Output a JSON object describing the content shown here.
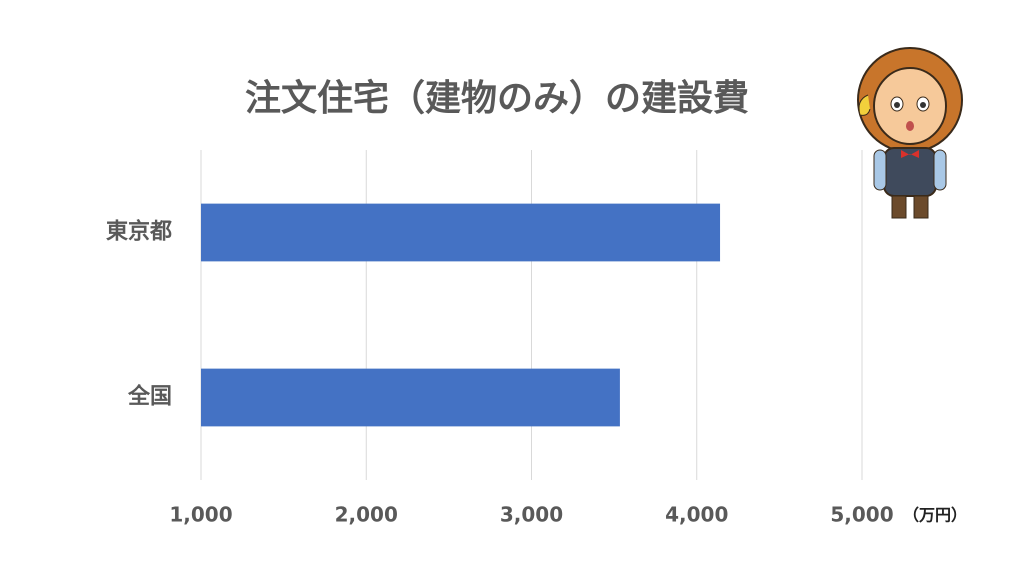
{
  "chart_data": {
    "type": "bar",
    "orientation": "horizontal",
    "title": "注文住宅（建物のみ）の建設費",
    "categories": [
      "東京都",
      "全国"
    ],
    "values": [
      4141,
      3535
    ],
    "color": "#4472c4",
    "xlim": [
      1000,
      5000
    ],
    "xticks": [
      {
        "value": 1000,
        "label": "1,000"
      },
      {
        "value": 2000,
        "label": "2,000"
      },
      {
        "value": 3000,
        "label": "3,000"
      },
      {
        "value": 4000,
        "label": "4,000"
      },
      {
        "value": 5000,
        "label": "5,000"
      }
    ],
    "x_unit": "（万円）",
    "grid": true
  }
}
